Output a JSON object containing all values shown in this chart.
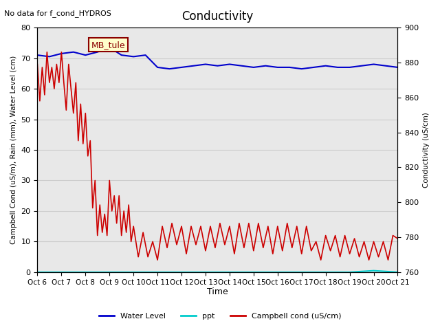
{
  "title": "Conductivity",
  "top_left_text": "No data for f_cond_HYDROS",
  "annotation_box": "MB_tule",
  "xlabel": "Time",
  "ylabel_left": "Campbell Cond (uS/m), Rain (mm), Water Level (cm)",
  "ylabel_right": "Conductivity (uS/cm)",
  "xlim": [
    0,
    15
  ],
  "ylim_left": [
    0,
    80
  ],
  "ylim_right": [
    760,
    900
  ],
  "x_tick_labels": [
    "Oct 6",
    "Oct 7",
    "Oct 8",
    "Oct 9",
    "Oct 10",
    "Oct 11",
    "Oct 12",
    "Oct 13",
    "Oct 14",
    "Oct 15",
    "Oct 16",
    "Oct 17",
    "Oct 18",
    "Oct 19",
    "Oct 20",
    "Oct 21"
  ],
  "grid_color": "#cccccc",
  "bg_color": "#e8e8e8",
  "water_level_color": "#0000cc",
  "ppt_color": "#00cccc",
  "campbell_color": "#cc0000",
  "water_level_x": [
    0,
    0.5,
    1.0,
    1.5,
    2.0,
    2.5,
    3.0,
    3.5,
    4.0,
    4.5,
    5.0,
    5.5,
    6.0,
    6.5,
    7.0,
    7.5,
    8.0,
    8.5,
    9.0,
    9.5,
    10.0,
    10.5,
    11.0,
    11.5,
    12.0,
    12.5,
    13.0,
    13.5,
    14.0,
    14.5,
    15.0
  ],
  "water_level_y": [
    71,
    70.5,
    71.5,
    72,
    71,
    72,
    73.5,
    71,
    70.5,
    71,
    67,
    66.5,
    67,
    67.5,
    68,
    67.5,
    68,
    67.5,
    67,
    67.5,
    67,
    67,
    66.5,
    67,
    67.5,
    67,
    67,
    67.5,
    68,
    67.5,
    67
  ],
  "ppt_x": [
    0,
    1,
    2,
    3,
    4,
    5,
    6,
    7,
    8,
    9,
    10,
    11,
    12,
    13,
    14,
    15
  ],
  "ppt_y": [
    0,
    0,
    0,
    0,
    0,
    0,
    0,
    0,
    0,
    0,
    0,
    0,
    0,
    0,
    0.5,
    0
  ],
  "campbell_x": [
    0,
    0.1,
    0.2,
    0.3,
    0.4,
    0.5,
    0.6,
    0.7,
    0.8,
    0.9,
    1.0,
    1.1,
    1.2,
    1.3,
    1.4,
    1.5,
    1.6,
    1.7,
    1.8,
    1.9,
    2.0,
    2.1,
    2.2,
    2.3,
    2.4,
    2.5,
    2.6,
    2.7,
    2.8,
    2.9,
    3.0,
    3.1,
    3.2,
    3.3,
    3.4,
    3.5,
    3.6,
    3.7,
    3.8,
    3.9,
    4.0,
    4.2,
    4.4,
    4.6,
    4.8,
    5.0,
    5.2,
    5.4,
    5.6,
    5.8,
    6.0,
    6.2,
    6.4,
    6.6,
    6.8,
    7.0,
    7.2,
    7.4,
    7.6,
    7.8,
    8.0,
    8.2,
    8.4,
    8.6,
    8.8,
    9.0,
    9.2,
    9.4,
    9.6,
    9.8,
    10.0,
    10.2,
    10.4,
    10.6,
    10.8,
    11.0,
    11.2,
    11.4,
    11.6,
    11.8,
    12.0,
    12.2,
    12.4,
    12.6,
    12.8,
    13.0,
    13.2,
    13.4,
    13.6,
    13.8,
    14.0,
    14.2,
    14.4,
    14.6,
    14.8,
    15.0
  ],
  "campbell_y": [
    68,
    56,
    67,
    58,
    72,
    62,
    67,
    60,
    68,
    62,
    72,
    62,
    53,
    68,
    60,
    52,
    62,
    43,
    55,
    42,
    52,
    38,
    43,
    21,
    30,
    12,
    22,
    13,
    19,
    12,
    30,
    20,
    25,
    16,
    25,
    12,
    20,
    13,
    22,
    10,
    15,
    5,
    13,
    5,
    10,
    4,
    15,
    8,
    16,
    9,
    15,
    6,
    15,
    9,
    15,
    7,
    15,
    8,
    16,
    9,
    15,
    6,
    16,
    8,
    16,
    7,
    16,
    8,
    15,
    6,
    15,
    7,
    16,
    8,
    15,
    6,
    15,
    7,
    10,
    4,
    12,
    7,
    12,
    5,
    12,
    6,
    11,
    5,
    10,
    4,
    10,
    5,
    10,
    4,
    12,
    11
  ]
}
